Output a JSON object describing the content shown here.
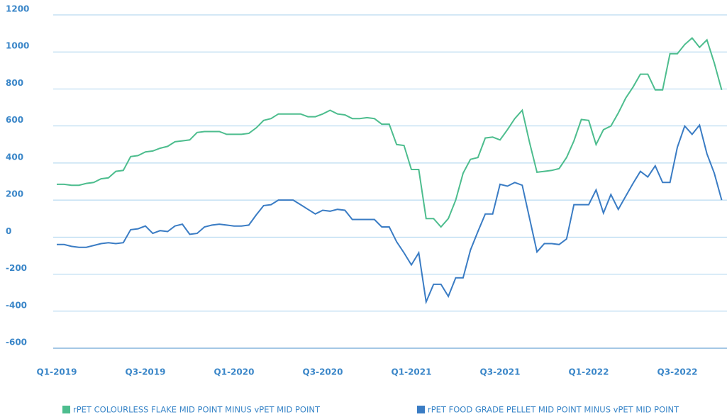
{
  "chart_data": {
    "type": "line",
    "categories": [
      "Q1-2019",
      null,
      null,
      null,
      null,
      null,
      null,
      null,
      null,
      null,
      null,
      null,
      "Q3-2019",
      null,
      null,
      null,
      null,
      null,
      null,
      null,
      null,
      null,
      null,
      null,
      "Q1-2020",
      null,
      null,
      null,
      null,
      null,
      null,
      null,
      null,
      null,
      null,
      null,
      "Q3-2020",
      null,
      null,
      null,
      null,
      null,
      null,
      null,
      null,
      null,
      null,
      null,
      "Q1-2021",
      null,
      null,
      null,
      null,
      null,
      null,
      null,
      null,
      null,
      null,
      null,
      "Q3-2021",
      null,
      null,
      null,
      null,
      null,
      null,
      null,
      null,
      null,
      null,
      null,
      "Q1-2022",
      null,
      null,
      null,
      null,
      null,
      null,
      null,
      null,
      null,
      null,
      null,
      "Q3-2022",
      null,
      null,
      null,
      null,
      null,
      null
    ],
    "series": [
      {
        "name": "rPET COLOURLESS FLAKE MID POINT MINUS vPET MID POINT",
        "color": "#4dbd8e",
        "values": [
          285,
          285,
          280,
          280,
          290,
          295,
          315,
          320,
          355,
          360,
          435,
          440,
          460,
          465,
          480,
          490,
          515,
          520,
          525,
          565,
          570,
          570,
          570,
          555,
          555,
          555,
          560,
          590,
          630,
          640,
          665,
          665,
          665,
          665,
          650,
          650,
          665,
          685,
          665,
          660,
          640,
          640,
          645,
          640,
          610,
          610,
          500,
          495,
          365,
          365,
          100,
          100,
          55,
          100,
          200,
          345,
          420,
          430,
          535,
          540,
          525,
          580,
          640,
          685,
          510,
          350,
          355,
          360,
          370,
          430,
          520,
          635,
          630,
          500,
          580,
          600,
          670,
          750,
          810,
          880,
          880,
          795,
          795,
          990,
          990,
          1040,
          1075,
          1025,
          1065,
          940,
          795
        ]
      },
      {
        "name": "rPET FOOD GRADE PELLET MID POINT MINUS vPET MID POINT",
        "color": "#3a7cc4",
        "values": [
          -40,
          -40,
          -50,
          -55,
          -55,
          -45,
          -35,
          -30,
          -35,
          -30,
          40,
          45,
          60,
          20,
          35,
          30,
          60,
          70,
          15,
          20,
          55,
          65,
          70,
          65,
          60,
          60,
          65,
          120,
          170,
          175,
          200,
          200,
          200,
          175,
          150,
          125,
          145,
          140,
          150,
          145,
          95,
          95,
          95,
          95,
          55,
          55,
          -25,
          -85,
          -150,
          -85,
          -350,
          -255,
          -255,
          -320,
          -220,
          -220,
          -70,
          30,
          125,
          125,
          285,
          275,
          295,
          280,
          100,
          -80,
          -35,
          -35,
          -40,
          -10,
          175,
          175,
          175,
          255,
          130,
          230,
          150,
          220,
          290,
          355,
          325,
          385,
          295,
          295,
          485,
          600,
          555,
          605,
          450,
          345,
          200
        ]
      }
    ],
    "ylim": [
      -600,
      1200
    ],
    "yticks": [
      -600,
      -400,
      -200,
      0,
      200,
      400,
      600,
      800,
      1000,
      1200
    ],
    "grid": true
  }
}
